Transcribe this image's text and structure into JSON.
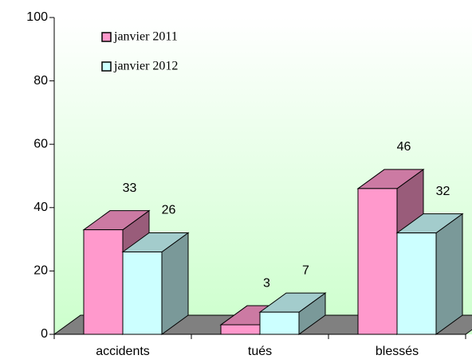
{
  "chart_data": {
    "type": "bar3d",
    "categories": [
      "accidents",
      "tués",
      "blessés"
    ],
    "series": [
      {
        "name": "janvier 2011",
        "color": "#ff99cc",
        "values": [
          33,
          3,
          46
        ]
      },
      {
        "name": "janvier 2012",
        "color": "#ccffff",
        "values": [
          26,
          7,
          32
        ]
      }
    ],
    "ylim": [
      0,
      100
    ],
    "yticks": [
      0,
      20,
      40,
      60,
      80,
      100
    ],
    "legend": "upper left"
  }
}
